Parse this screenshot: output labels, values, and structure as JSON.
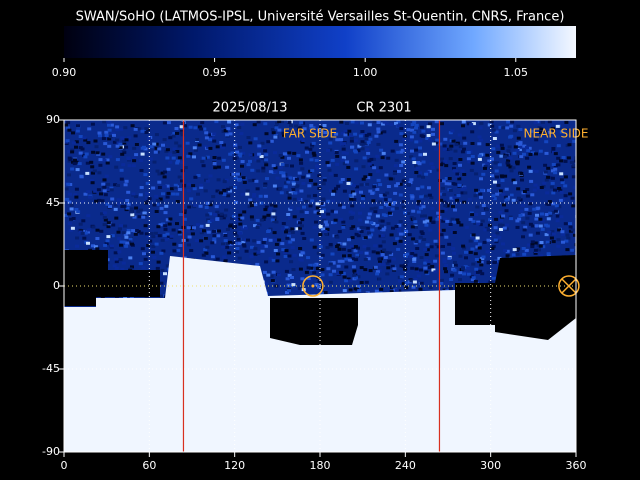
{
  "chart_data": {
    "type": "heatmap",
    "title": "SWAN/SoHO (LATMOS-IPSL, Université Versailles St-Quentin, CNRS, France)",
    "date": "2025/08/13",
    "rotation": "CR 2301",
    "colorbar": {
      "lim": [
        0.9,
        1.07
      ],
      "ticks": [
        {
          "value": 0.9,
          "label": "0.90"
        },
        {
          "value": 0.95,
          "label": "0.95"
        },
        {
          "value": 1,
          "label": "1.00"
        },
        {
          "value": 1.05,
          "label": "1.05"
        }
      ]
    },
    "xlim": [
      0,
      360
    ],
    "ylim": [
      -90,
      90
    ],
    "xticks": [
      0,
      60,
      120,
      180,
      240,
      300,
      360
    ],
    "yticks": [
      -90,
      -45,
      0,
      45,
      90
    ],
    "grid": true,
    "annotations": [
      "FAR SIDE",
      "NEAR SIDE"
    ],
    "annotation_color": "#ffb030",
    "lines": [
      {
        "x": 84,
        "color": "#d83020"
      },
      {
        "x": 264,
        "color": "#d83020"
      }
    ],
    "markers": [
      {
        "x": 175,
        "y": 0,
        "symbol": "circle-dot"
      },
      {
        "x": 355,
        "y": 0,
        "symbol": "circle-x"
      }
    ]
  }
}
